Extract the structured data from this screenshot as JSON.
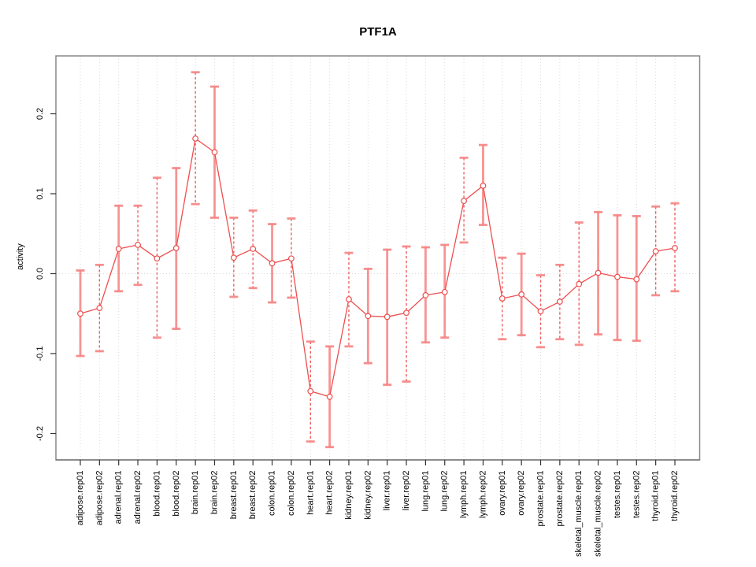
{
  "chart_data": {
    "type": "line",
    "title": "PTF1A",
    "xlabel": "",
    "ylabel": "activity",
    "ylim": [
      -0.233,
      0.273
    ],
    "yticks": [
      0.2,
      0.1,
      0.0,
      -0.1,
      -0.2
    ],
    "ytick_labels": [
      "0.2",
      "0.1",
      "0.0",
      "-0.1",
      "-0.2"
    ],
    "grid": "vertical-dotted",
    "zero_line_dotted": true,
    "legend": "none",
    "marker": "open-circle",
    "colors": {
      "line": "#ee4e4e",
      "error_bar": "#f78282",
      "grid": "#d8d8d8",
      "box": "#888888",
      "tick": "#333333",
      "text": "#000000"
    },
    "categories": [
      "adipose.rep01",
      "adipose.rep02",
      "adrenal.rep01",
      "adrenal.rep02",
      "blood.rep01",
      "blood.rep02",
      "brain.rep01",
      "brain.rep02",
      "breast.rep01",
      "breast.rep02",
      "colon.rep01",
      "colon.rep02",
      "heart.rep01",
      "heart.rep02",
      "kidney.rep01",
      "kidney.rep02",
      "liver.rep01",
      "liver.rep02",
      "lung.rep01",
      "lung.rep02",
      "lymph.rep01",
      "lymph.rep02",
      "ovary.rep01",
      "ovary.rep02",
      "prostate.rep01",
      "prostate.rep02",
      "skeletal_muscle.rep01",
      "skeletal_muscle.rep02",
      "testes.rep01",
      "testes.rep02",
      "thyroid.rep01",
      "thyroid.rep02"
    ],
    "series": [
      {
        "name": "activity",
        "values": [
          -0.05,
          -0.043,
          0.031,
          0.036,
          0.019,
          0.032,
          0.169,
          0.152,
          0.02,
          0.031,
          0.013,
          0.019,
          -0.147,
          -0.154,
          -0.032,
          -0.053,
          -0.054,
          -0.049,
          -0.027,
          -0.023,
          0.091,
          0.11,
          -0.031,
          -0.026,
          -0.047,
          -0.035,
          -0.013,
          0.001,
          -0.004,
          -0.007,
          0.028,
          0.032
        ],
        "upper": [
          0.004,
          0.011,
          0.085,
          0.085,
          0.12,
          0.132,
          0.252,
          0.234,
          0.07,
          0.079,
          0.062,
          0.069,
          -0.085,
          -0.091,
          0.026,
          0.006,
          0.03,
          0.034,
          0.033,
          0.036,
          0.145,
          0.161,
          0.02,
          0.025,
          -0.002,
          0.011,
          0.064,
          0.077,
          0.073,
          0.072,
          0.084,
          0.088
        ],
        "lower": [
          -0.103,
          -0.097,
          -0.022,
          -0.014,
          -0.08,
          -0.069,
          0.087,
          0.07,
          -0.029,
          -0.018,
          -0.036,
          -0.03,
          -0.21,
          -0.217,
          -0.091,
          -0.112,
          -0.139,
          -0.135,
          -0.086,
          -0.08,
          0.039,
          0.061,
          -0.082,
          -0.077,
          -0.092,
          -0.082,
          -0.089,
          -0.076,
          -0.083,
          -0.084,
          -0.027,
          -0.022
        ],
        "error_style": [
          "solid",
          "dashed",
          "solid",
          "dashed",
          "dashed",
          "solid",
          "dashed",
          "solid",
          "dashed",
          "dashed",
          "solid",
          "dashed",
          "dashed",
          "solid",
          "dashed",
          "solid",
          "solid",
          "dashed",
          "solid",
          "solid",
          "dashed",
          "solid",
          "dashed",
          "solid",
          "dashed",
          "dashed",
          "dashed",
          "solid",
          "solid",
          "solid",
          "dashed",
          "dashed"
        ]
      }
    ]
  }
}
